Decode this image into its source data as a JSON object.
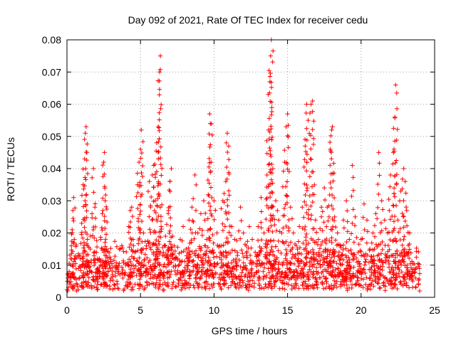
{
  "chart_data": {
    "type": "scatter",
    "title": "Day 092 of 2021, Rate Of TEC Index for receiver cedu",
    "xlabel": "GPS time / hours",
    "ylabel": "ROTI / TECUs",
    "xlim": [
      0,
      25
    ],
    "ylim": [
      0,
      0.08
    ],
    "xticks": [
      0,
      5,
      10,
      15,
      20,
      25
    ],
    "xtick_labels": [
      "0",
      "5",
      "10",
      "15",
      "20",
      "25"
    ],
    "yticks": [
      0,
      0.01,
      0.02,
      0.03,
      0.04,
      0.05,
      0.06,
      0.07,
      0.08
    ],
    "ytick_labels": [
      "0",
      "0.01",
      "0.02",
      "0.03",
      "0.04",
      "0.05",
      "0.06",
      "0.07",
      "0.08"
    ],
    "grid": true,
    "marker": "+",
    "series": [
      {
        "color": "#ff0000",
        "points": [
          [
            0.05,
            0.005
          ],
          [
            0.15,
            0.008
          ],
          [
            0.25,
            0.012
          ],
          [
            0.3,
            0.016
          ],
          [
            0.35,
            0.021
          ],
          [
            0.4,
            0.027
          ],
          [
            0.45,
            0.031
          ],
          [
            0.5,
            0.018
          ],
          [
            0.6,
            0.006
          ],
          [
            0.7,
            0.004
          ],
          [
            0.8,
            0.009
          ],
          [
            0.9,
            0.012
          ],
          [
            1.0,
            0.023
          ],
          [
            1.1,
            0.035
          ],
          [
            1.2,
            0.043
          ],
          [
            1.25,
            0.051
          ],
          [
            1.3,
            0.053
          ],
          [
            1.4,
            0.016
          ],
          [
            1.5,
            0.011
          ],
          [
            1.6,
            0.019
          ],
          [
            1.7,
            0.026
          ],
          [
            1.8,
            0.04
          ],
          [
            1.9,
            0.028
          ],
          [
            2.0,
            0.014
          ],
          [
            2.1,
            0.009
          ],
          [
            2.2,
            0.012
          ],
          [
            2.3,
            0.018
          ],
          [
            2.4,
            0.026
          ],
          [
            2.5,
            0.042
          ],
          [
            2.55,
            0.045
          ],
          [
            2.6,
            0.03
          ],
          [
            2.7,
            0.015
          ],
          [
            2.8,
            0.008
          ],
          [
            3.0,
            0.006
          ],
          [
            3.2,
            0.004
          ],
          [
            3.4,
            0.005
          ],
          [
            3.6,
            0.007
          ],
          [
            3.8,
            0.006
          ],
          [
            4.0,
            0.01
          ],
          [
            4.2,
            0.022
          ],
          [
            4.3,
            0.027
          ],
          [
            4.4,
            0.028
          ],
          [
            4.5,
            0.018
          ],
          [
            4.6,
            0.014
          ],
          [
            4.8,
            0.035
          ],
          [
            4.9,
            0.042
          ],
          [
            5.0,
            0.046
          ],
          [
            5.05,
            0.052
          ],
          [
            5.2,
            0.02
          ],
          [
            5.4,
            0.016
          ],
          [
            5.6,
            0.036
          ],
          [
            5.8,
            0.038
          ],
          [
            5.9,
            0.041
          ],
          [
            6.0,
            0.03
          ],
          [
            6.1,
            0.048
          ],
          [
            6.2,
            0.053
          ],
          [
            6.3,
            0.07
          ],
          [
            6.35,
            0.075
          ],
          [
            6.4,
            0.022
          ],
          [
            6.5,
            0.013
          ],
          [
            6.7,
            0.019
          ],
          [
            6.9,
            0.027
          ],
          [
            7.0,
            0.036
          ],
          [
            7.1,
            0.04
          ],
          [
            7.3,
            0.016
          ],
          [
            7.5,
            0.012
          ],
          [
            7.7,
            0.018
          ],
          [
            7.9,
            0.022
          ],
          [
            8.1,
            0.015
          ],
          [
            8.3,
            0.024
          ],
          [
            8.5,
            0.028
          ],
          [
            8.7,
            0.038
          ],
          [
            8.9,
            0.02
          ],
          [
            9.1,
            0.026
          ],
          [
            9.3,
            0.03
          ],
          [
            9.5,
            0.018
          ],
          [
            9.7,
            0.057
          ],
          [
            9.75,
            0.054
          ],
          [
            9.8,
            0.042
          ],
          [
            10.0,
            0.03
          ],
          [
            10.2,
            0.02
          ],
          [
            10.4,
            0.016
          ],
          [
            10.6,
            0.03
          ],
          [
            10.8,
            0.036
          ],
          [
            10.9,
            0.051
          ],
          [
            11.0,
            0.047
          ],
          [
            11.2,
            0.022
          ],
          [
            11.4,
            0.018
          ],
          [
            11.6,
            0.013
          ],
          [
            11.8,
            0.028
          ],
          [
            12.0,
            0.02
          ],
          [
            12.2,
            0.016
          ],
          [
            12.4,
            0.022
          ],
          [
            12.6,
            0.018
          ],
          [
            12.8,
            0.014
          ],
          [
            13.0,
            0.022
          ],
          [
            13.2,
            0.031
          ],
          [
            13.4,
            0.02
          ],
          [
            13.6,
            0.038
          ],
          [
            13.7,
            0.052
          ],
          [
            13.8,
            0.067
          ],
          [
            13.85,
            0.075
          ],
          [
            13.9,
            0.08
          ],
          [
            14.0,
            0.04
          ],
          [
            14.2,
            0.03
          ],
          [
            14.4,
            0.024
          ],
          [
            14.6,
            0.02
          ],
          [
            14.8,
            0.042
          ],
          [
            14.9,
            0.053
          ],
          [
            15.0,
            0.057
          ],
          [
            15.2,
            0.028
          ],
          [
            15.4,
            0.02
          ],
          [
            15.6,
            0.016
          ],
          [
            15.8,
            0.022
          ],
          [
            16.0,
            0.028
          ],
          [
            16.2,
            0.047
          ],
          [
            16.3,
            0.06
          ],
          [
            16.4,
            0.055
          ],
          [
            16.6,
            0.06
          ],
          [
            16.7,
            0.061
          ],
          [
            16.9,
            0.024
          ],
          [
            17.1,
            0.018
          ],
          [
            17.3,
            0.028
          ],
          [
            17.5,
            0.034
          ],
          [
            17.7,
            0.028
          ],
          [
            17.9,
            0.046
          ],
          [
            18.0,
            0.052
          ],
          [
            18.05,
            0.053
          ],
          [
            18.2,
            0.025
          ],
          [
            18.4,
            0.02
          ],
          [
            18.6,
            0.016
          ],
          [
            18.8,
            0.024
          ],
          [
            19.0,
            0.03
          ],
          [
            19.2,
            0.018
          ],
          [
            19.4,
            0.041
          ],
          [
            19.6,
            0.025
          ],
          [
            19.8,
            0.014
          ],
          [
            20.0,
            0.018
          ],
          [
            20.2,
            0.029
          ],
          [
            20.4,
            0.024
          ],
          [
            20.6,
            0.015
          ],
          [
            20.8,
            0.02
          ],
          [
            21.0,
            0.026
          ],
          [
            21.2,
            0.045
          ],
          [
            21.4,
            0.03
          ],
          [
            21.6,
            0.024
          ],
          [
            21.8,
            0.02
          ],
          [
            22.0,
            0.038
          ],
          [
            22.2,
            0.045
          ],
          [
            22.3,
            0.056
          ],
          [
            22.35,
            0.066
          ],
          [
            22.5,
            0.024
          ],
          [
            22.7,
            0.033
          ],
          [
            22.9,
            0.04
          ],
          [
            23.0,
            0.036
          ],
          [
            23.1,
            0.027
          ],
          [
            23.3,
            0.02
          ],
          [
            23.5,
            0.008
          ],
          [
            23.7,
            0.006
          ],
          [
            23.9,
            0.004
          ]
        ],
        "baseline_band": {
          "x_range": [
            0,
            24
          ],
          "y_floor": 0.002,
          "y_typical_max": 0.012
        }
      }
    ]
  }
}
